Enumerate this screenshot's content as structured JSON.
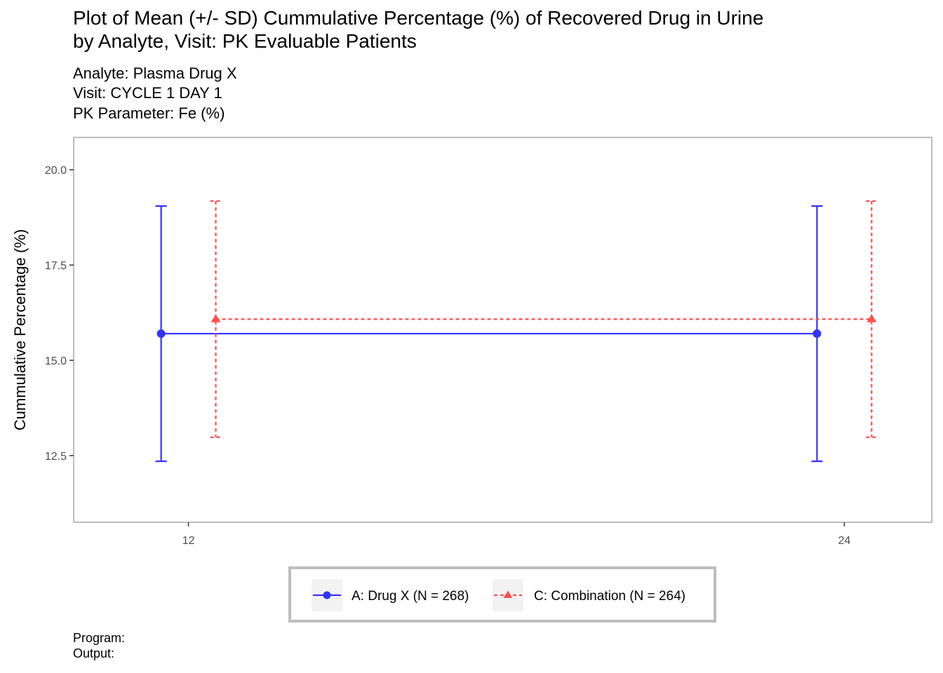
{
  "header": {
    "title_line1": "Plot of Mean (+/- SD) Cummulative Percentage (%) of Recovered Drug in Urine",
    "title_line2": "by Analyte, Visit: PK Evaluable Patients",
    "subtitle_line1": "Analyte: Plasma Drug X",
    "subtitle_line2": "Visit: CYCLE 1 DAY 1",
    "subtitle_line3": "PK Parameter: Fe (%)"
  },
  "footer": {
    "program_label": "Program:",
    "output_label": "Output:"
  },
  "chart_data": {
    "type": "line",
    "xlabel": "",
    "ylabel": "Cummulative Percentage (%)",
    "x_ticks": [
      12,
      24
    ],
    "y_ticks": [
      "12.5",
      "15.0",
      "17.5",
      "20.0"
    ],
    "xlim": [
      9.9,
      25.6
    ],
    "ylim": [
      10.75,
      20.85
    ],
    "grid": false,
    "legend_position": "bottom",
    "series": [
      {
        "name": "A: Drug X (N = 268)",
        "color": "#3333ff",
        "marker": "circle",
        "line_style": "solid",
        "dodge": -0.5,
        "x": [
          12,
          24
        ],
        "mean": [
          15.7,
          15.7
        ],
        "sd_lower": [
          12.35,
          12.35
        ],
        "sd_upper": [
          19.05,
          19.05
        ]
      },
      {
        "name": "C: Combination (N = 264)",
        "color": "#ff4d4d",
        "marker": "triangle",
        "line_style": "dashed",
        "dodge": 0.5,
        "x": [
          12,
          24
        ],
        "mean": [
          16.08,
          16.08
        ],
        "sd_lower": [
          12.98,
          12.98
        ],
        "sd_upper": [
          19.18,
          19.18
        ]
      }
    ]
  }
}
